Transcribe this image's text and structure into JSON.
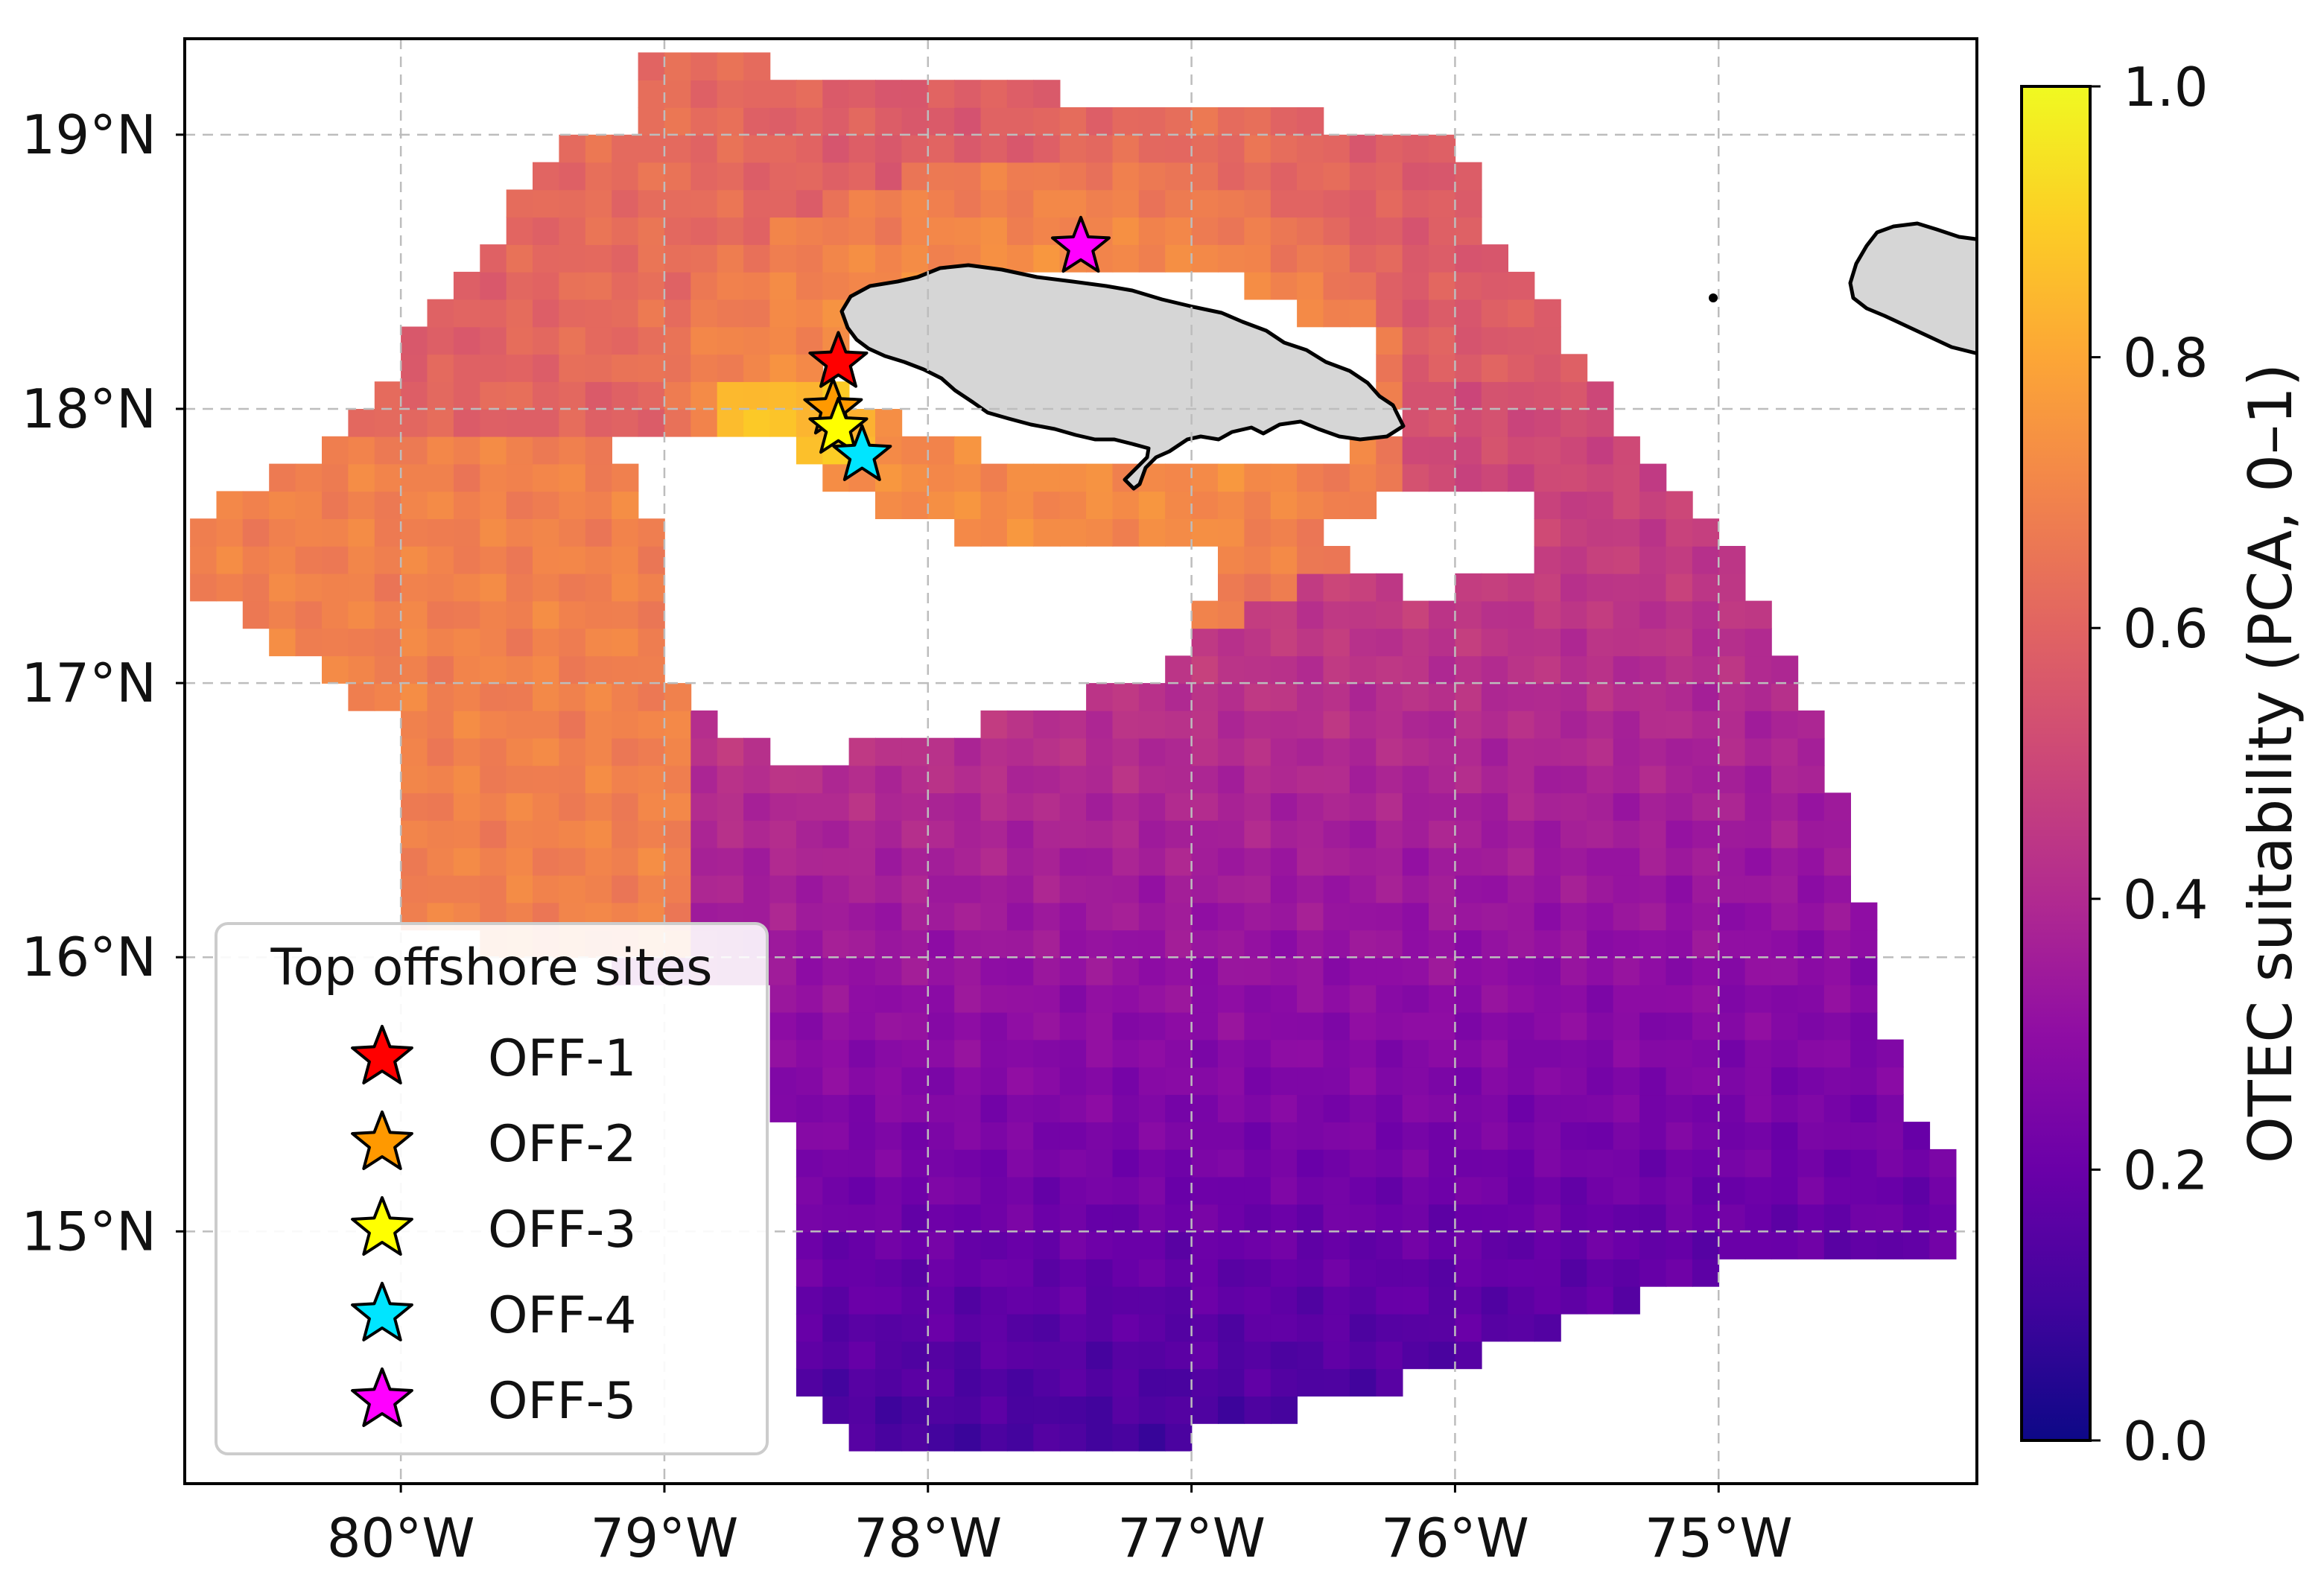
{
  "map": {
    "lon_range": [
      -80.82,
      -74.02
    ],
    "lat_range": [
      14.08,
      19.35
    ],
    "lon_ticks": [
      {
        "value": -80,
        "label": "80°W"
      },
      {
        "value": -79,
        "label": "79°W"
      },
      {
        "value": -78,
        "label": "78°W"
      },
      {
        "value": -77,
        "label": "77°W"
      },
      {
        "value": -76,
        "label": "76°W"
      },
      {
        "value": -75,
        "label": "75°W"
      }
    ],
    "lat_ticks": [
      {
        "value": 19,
        "label": "19°N"
      },
      {
        "value": 18,
        "label": "18°N"
      },
      {
        "value": 17,
        "label": "17°N"
      },
      {
        "value": 16,
        "label": "16°N"
      },
      {
        "value": 15,
        "label": "15°N"
      }
    ],
    "grid": true,
    "land_color": "#d6d6d6",
    "land_features": [
      "Jamaica",
      "Hispaniola"
    ]
  },
  "colorbar": {
    "label": "OTEC suitability (PCA, 0–1)",
    "colormap": "plasma",
    "range": [
      0,
      1
    ],
    "ticks": [
      {
        "value": 0.0,
        "label": "0.0"
      },
      {
        "value": 0.2,
        "label": "0.2"
      },
      {
        "value": 0.4,
        "label": "0.4"
      },
      {
        "value": 0.6,
        "label": "0.6"
      },
      {
        "value": 0.8,
        "label": "0.8"
      },
      {
        "value": 1.0,
        "label": "1.0"
      }
    ]
  },
  "legend": {
    "title": "Top offshore sites",
    "placement": "lower-left"
  },
  "sites": [
    {
      "name": "OFF-1",
      "lon": -78.34,
      "lat": 18.17,
      "color": "#ff0000"
    },
    {
      "name": "OFF-2",
      "lon": -78.36,
      "lat": 18.0,
      "color": "#ff9900"
    },
    {
      "name": "OFF-3",
      "lon": -78.34,
      "lat": 17.93,
      "color": "#ffff00"
    },
    {
      "name": "OFF-4",
      "lon": -78.25,
      "lat": 17.83,
      "color": "#00e5ff"
    },
    {
      "name": "OFF-5",
      "lon": -77.42,
      "lat": 18.59,
      "color": "#ff00ff"
    }
  ]
}
